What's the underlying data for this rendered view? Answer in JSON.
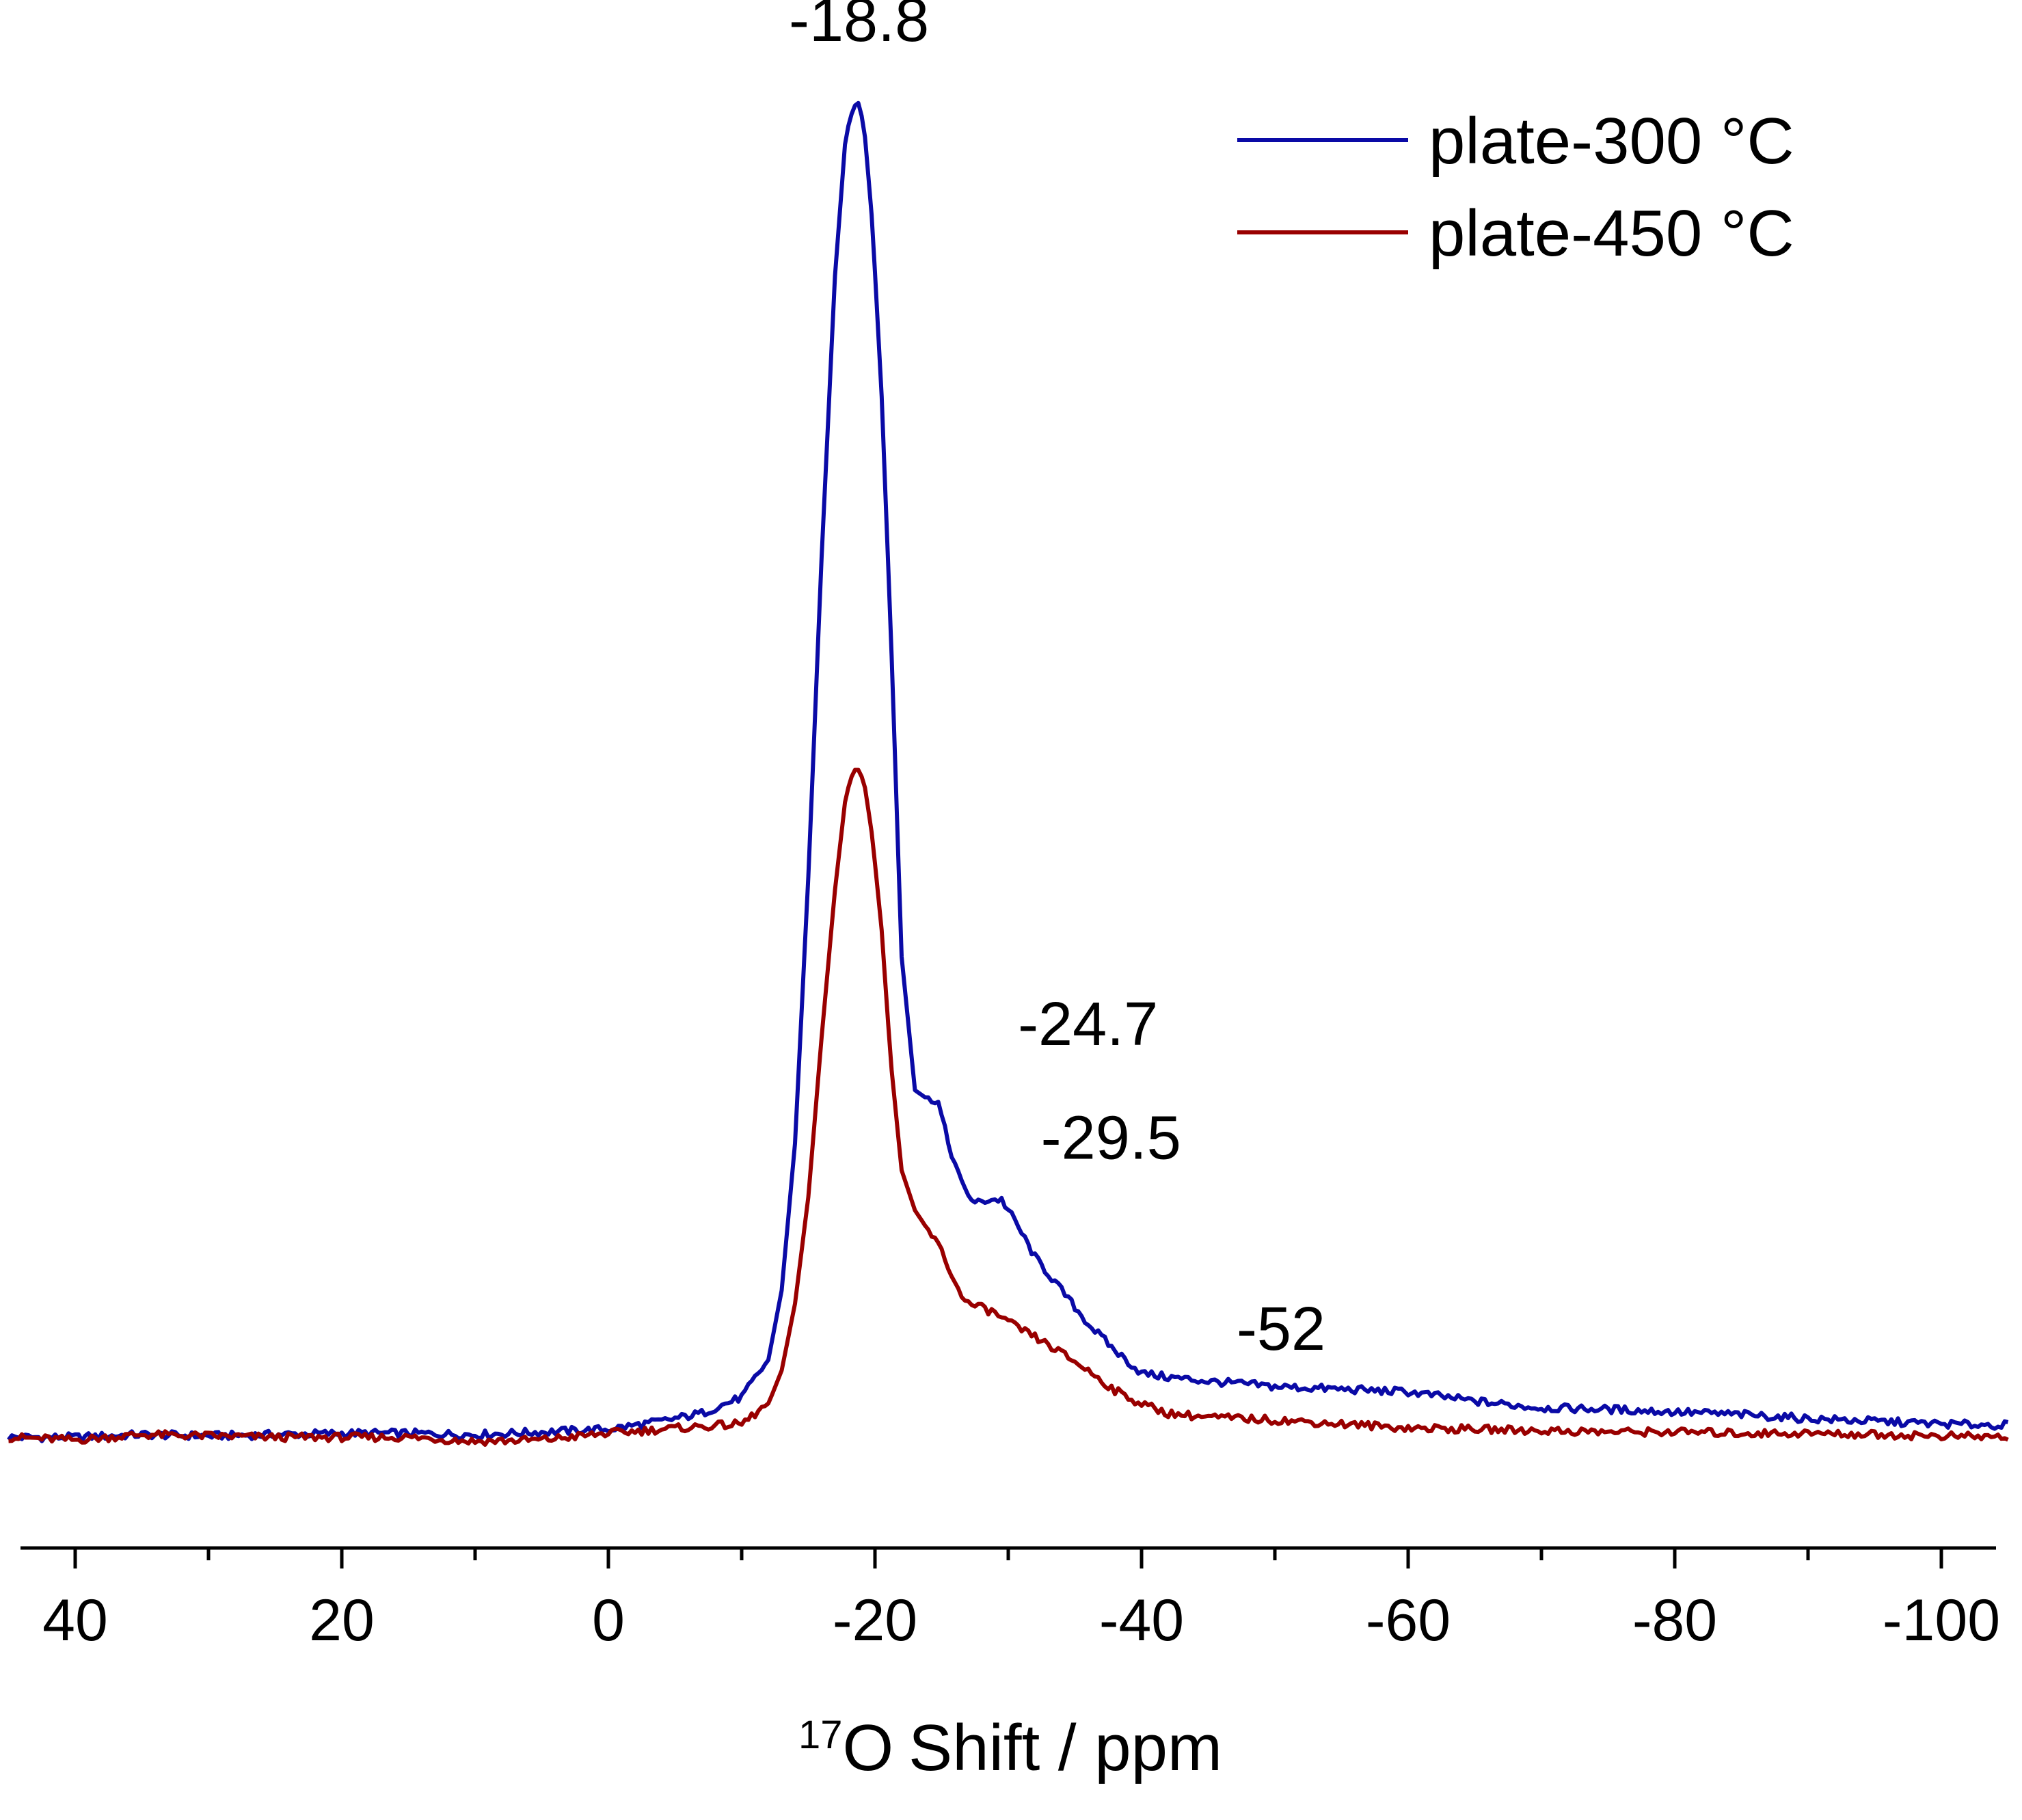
{
  "chart_data": {
    "type": "line",
    "title": "",
    "xlabel": "Shift / ppm",
    "xlabel_superscript": "17",
    "xlabel_nucleus": "O",
    "ylabel": "",
    "x_reversed": true,
    "xlim": [
      45,
      -105
    ],
    "ylim": [
      -0.05,
      1.05
    ],
    "x_ticks_major": [
      40,
      20,
      0,
      -20,
      -40,
      -60,
      -80,
      -100
    ],
    "x_tick_labels": [
      "40",
      "20",
      "0",
      "-20",
      "-40",
      "-60",
      "-80",
      "-100"
    ],
    "x_ticks_minor": [
      30,
      10,
      -10,
      -30,
      -50,
      -70,
      -90
    ],
    "grid": false,
    "legend_position": "top-right",
    "series": [
      {
        "name": "plate-300 °C",
        "color": "#0a0aa6",
        "x": [
          45,
          40,
          35,
          30,
          25,
          20,
          15,
          10,
          5,
          0,
          -4,
          -7,
          -10,
          -12,
          -13,
          -14,
          -15,
          -16,
          -17,
          -17.8,
          -18.4,
          -18.8,
          -19.2,
          -19.8,
          -20.5,
          -21.2,
          -22,
          -23,
          -24,
          -24.7,
          -25.5,
          -26.5,
          -27.5,
          -28.5,
          -29.5,
          -30.5,
          -32,
          -34,
          -36,
          -38,
          -40,
          -42,
          -45,
          -50,
          -55,
          -60,
          -65,
          -70,
          -75,
          -80,
          -85,
          -90,
          -95,
          -100,
          -105
        ],
        "y": [
          0.0,
          0.0,
          0.002,
          0.001,
          0.002,
          0.003,
          0.003,
          0.002,
          0.004,
          0.006,
          0.012,
          0.018,
          0.03,
          0.058,
          0.11,
          0.22,
          0.42,
          0.66,
          0.87,
          0.975,
          0.997,
          1.0,
          0.98,
          0.91,
          0.78,
          0.6,
          0.36,
          0.26,
          0.253,
          0.253,
          0.22,
          0.19,
          0.175,
          0.178,
          0.178,
          0.162,
          0.135,
          0.11,
          0.085,
          0.065,
          0.048,
          0.045,
          0.042,
          0.038,
          0.036,
          0.034,
          0.027,
          0.022,
          0.021,
          0.019,
          0.017,
          0.014,
          0.012,
          0.01,
          0.009
        ]
      },
      {
        "name": "plate-450 °C",
        "color": "#990000",
        "x": [
          45,
          40,
          35,
          30,
          25,
          20,
          15,
          10,
          5,
          0,
          -4,
          -7,
          -10,
          -12,
          -13,
          -14,
          -15,
          -16,
          -17,
          -17.8,
          -18.4,
          -18.8,
          -19.2,
          -19.8,
          -20.5,
          -21.2,
          -22,
          -23,
          -24,
          -25,
          -26,
          -27,
          -28,
          -29,
          -30,
          -32,
          -34,
          -36,
          -38,
          -40,
          -42,
          -45,
          -50,
          -55,
          -60,
          -65,
          -70,
          -75,
          -80,
          -85,
          -90,
          -95,
          -100,
          -105
        ],
        "y": [
          0.0,
          -0.002,
          0.002,
          0.001,
          0.0,
          0.0,
          0.0,
          -0.003,
          -0.002,
          0.003,
          0.006,
          0.008,
          0.01,
          0.025,
          0.05,
          0.1,
          0.18,
          0.3,
          0.41,
          0.48,
          0.5,
          0.5,
          0.49,
          0.45,
          0.38,
          0.28,
          0.2,
          0.17,
          0.155,
          0.14,
          0.115,
          0.1,
          0.097,
          0.093,
          0.086,
          0.075,
          0.063,
          0.05,
          0.035,
          0.025,
          0.018,
          0.015,
          0.013,
          0.01,
          0.007,
          0.006,
          0.005,
          0.004,
          0.004,
          0.003,
          0.003,
          0.002,
          0.001,
          0.0
        ]
      }
    ],
    "annotations": [
      {
        "text": "-18.8",
        "x": -18.8,
        "y": 1.0
      },
      {
        "text": "-24.7",
        "x": -24.7,
        "y": 0.253
      },
      {
        "text": "-29.5",
        "x": -29.5,
        "y": 0.178
      },
      {
        "text": "-52",
        "x": -52,
        "y": 0.04
      }
    ]
  }
}
